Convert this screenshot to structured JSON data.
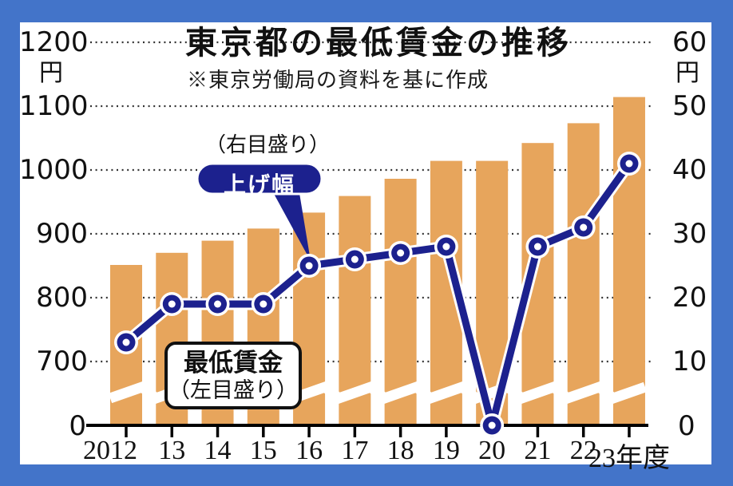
{
  "title": "東京都の最低賃金の推移",
  "subtitle": "※東京労働局の資料を基に作成",
  "annotations": {
    "right_scale_note": "（右目盛り）",
    "line_series_label": "上げ幅",
    "bar_series_label": "最低賃金",
    "bar_series_scale_note": "（左目盛り）"
  },
  "axes": {
    "left": {
      "unit": "円",
      "tick_labels": [
        "1200",
        "1100",
        "1000",
        "900",
        "800",
        "700"
      ],
      "zero_label": "0"
    },
    "right": {
      "unit": "円",
      "tick_labels": [
        "60",
        "50",
        "40",
        "30",
        "20",
        "10"
      ],
      "zero_label": "0"
    },
    "x": {
      "labels": [
        "2012",
        "13",
        "14",
        "15",
        "16",
        "17",
        "18",
        "19",
        "20",
        "21",
        "22",
        "23年度"
      ]
    }
  },
  "chart_data": {
    "type": "bar+line dual-axis",
    "categories": [
      "2012",
      "2013",
      "2014",
      "2015",
      "2016",
      "2017",
      "2018",
      "2019",
      "2020",
      "2021",
      "2022",
      "2023"
    ],
    "series": [
      {
        "name": "最低賃金",
        "type": "bar",
        "axis": "left",
        "unit": "円",
        "values": [
          850,
          869,
          888,
          907,
          932,
          958,
          985,
          1013,
          1013,
          1041,
          1072,
          1113
        ]
      },
      {
        "name": "上げ幅",
        "type": "line",
        "axis": "right",
        "unit": "円",
        "values": [
          13,
          19,
          19,
          19,
          25,
          26,
          27,
          28,
          0,
          28,
          31,
          41
        ]
      }
    ],
    "left_axis_displayed_range": [
      700,
      1200
    ],
    "left_axis_break_between": [
      0,
      700
    ],
    "right_axis_range": [
      0,
      60
    ],
    "gridlines": "dotted horizontal, every 100円 (left) / 10円 (right)",
    "x_axis_suffix": "年度"
  },
  "colors": {
    "frame": "#4374C9",
    "bar": "#E7A55C",
    "line": "#1C218E",
    "background": "#FFFFFF",
    "text": "#111111"
  }
}
